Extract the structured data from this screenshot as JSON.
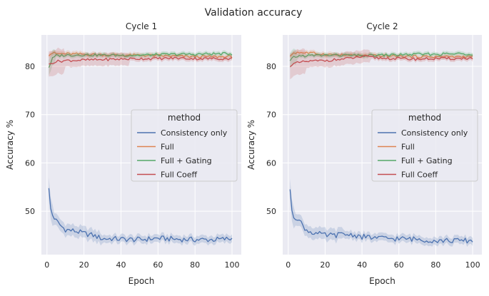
{
  "suptitle": "Validation accuracy",
  "chart_data": [
    {
      "type": "line",
      "title": "Cycle 1",
      "xlabel": "Epoch",
      "ylabel": "Accuracy %",
      "xlim": [
        -3,
        105
      ],
      "ylim": [
        41,
        86.5
      ],
      "xticks": [
        0,
        20,
        40,
        60,
        80,
        100
      ],
      "yticks": [
        50,
        60,
        70,
        80
      ],
      "grid": true,
      "legend": {
        "title": "method",
        "position": "center-right"
      },
      "series": [
        {
          "name": "Consistency only",
          "color": "#4c72b0",
          "x": [
            1,
            2,
            3,
            5,
            8,
            10,
            15,
            20,
            25,
            30,
            35,
            40,
            50,
            60,
            70,
            80,
            90,
            100
          ],
          "y": [
            54.5,
            50.5,
            49.2,
            48.0,
            46.8,
            46.2,
            45.9,
            45.4,
            45.0,
            44.3,
            44.3,
            44.2,
            44.1,
            44.4,
            44.2,
            44.1,
            44.1,
            44.3
          ]
        },
        {
          "name": "Full",
          "color": "#dd8452",
          "x": [
            1,
            3,
            5,
            10,
            20,
            30,
            40,
            50,
            60,
            70,
            80,
            90,
            100
          ],
          "y": [
            82.4,
            82.8,
            82.6,
            82.6,
            82.5,
            82.4,
            82.3,
            82.3,
            82.2,
            82.1,
            82.0,
            82.0,
            82.0
          ]
        },
        {
          "name": "Full + Gating",
          "color": "#55a868",
          "x": [
            1,
            3,
            5,
            10,
            20,
            30,
            40,
            50,
            60,
            70,
            80,
            90,
            100
          ],
          "y": [
            79.8,
            81.6,
            82.2,
            82.3,
            82.4,
            82.3,
            82.3,
            82.3,
            82.4,
            82.5,
            82.5,
            82.6,
            82.6
          ]
        },
        {
          "name": "Full Coeff",
          "color": "#c44e52",
          "x": [
            1,
            3,
            5,
            10,
            20,
            30,
            40,
            50,
            60,
            70,
            80,
            90,
            100
          ],
          "y": [
            80.3,
            80.8,
            81.0,
            81.2,
            81.3,
            81.4,
            81.5,
            81.6,
            81.6,
            81.7,
            81.6,
            81.6,
            81.6
          ]
        }
      ]
    },
    {
      "type": "line",
      "title": "Cycle 2",
      "xlabel": "Epoch",
      "ylabel": "Accuracy %",
      "xlim": [
        -3,
        105
      ],
      "ylim": [
        41,
        86.5
      ],
      "xticks": [
        0,
        20,
        40,
        60,
        80,
        100
      ],
      "yticks": [
        50,
        60,
        70,
        80
      ],
      "grid": true,
      "legend": {
        "title": "method",
        "position": "center-right"
      },
      "series": [
        {
          "name": "Consistency only",
          "color": "#4c72b0",
          "x": [
            1,
            2,
            3,
            5,
            8,
            10,
            15,
            20,
            25,
            30,
            35,
            40,
            50,
            60,
            70,
            80,
            90,
            100
          ],
          "y": [
            54.0,
            50.5,
            48.9,
            48.6,
            47.0,
            46.0,
            45.4,
            45.0,
            45.0,
            45.2,
            45.1,
            44.7,
            44.4,
            44.3,
            44.2,
            43.9,
            43.9,
            43.9
          ]
        },
        {
          "name": "Full",
          "color": "#dd8452",
          "x": [
            1,
            3,
            5,
            10,
            20,
            30,
            40,
            50,
            60,
            70,
            80,
            90,
            100
          ],
          "y": [
            82.2,
            82.8,
            82.9,
            82.8,
            82.5,
            82.3,
            82.2,
            82.2,
            82.1,
            82.0,
            82.0,
            82.0,
            82.0
          ]
        },
        {
          "name": "Full + Gating",
          "color": "#55a868",
          "x": [
            1,
            3,
            5,
            10,
            20,
            30,
            40,
            50,
            60,
            70,
            80,
            90,
            100
          ],
          "y": [
            81.0,
            81.9,
            82.1,
            82.2,
            82.3,
            82.3,
            82.2,
            82.3,
            82.4,
            82.5,
            82.5,
            82.6,
            82.6
          ]
        },
        {
          "name": "Full Coeff",
          "color": "#c44e52",
          "x": [
            1,
            3,
            5,
            10,
            20,
            30,
            40,
            50,
            60,
            70,
            80,
            90,
            100
          ],
          "y": [
            80.2,
            80.5,
            80.7,
            81.0,
            81.2,
            81.5,
            82.0,
            81.7,
            81.6,
            81.5,
            81.6,
            81.6,
            81.7
          ]
        }
      ]
    }
  ]
}
